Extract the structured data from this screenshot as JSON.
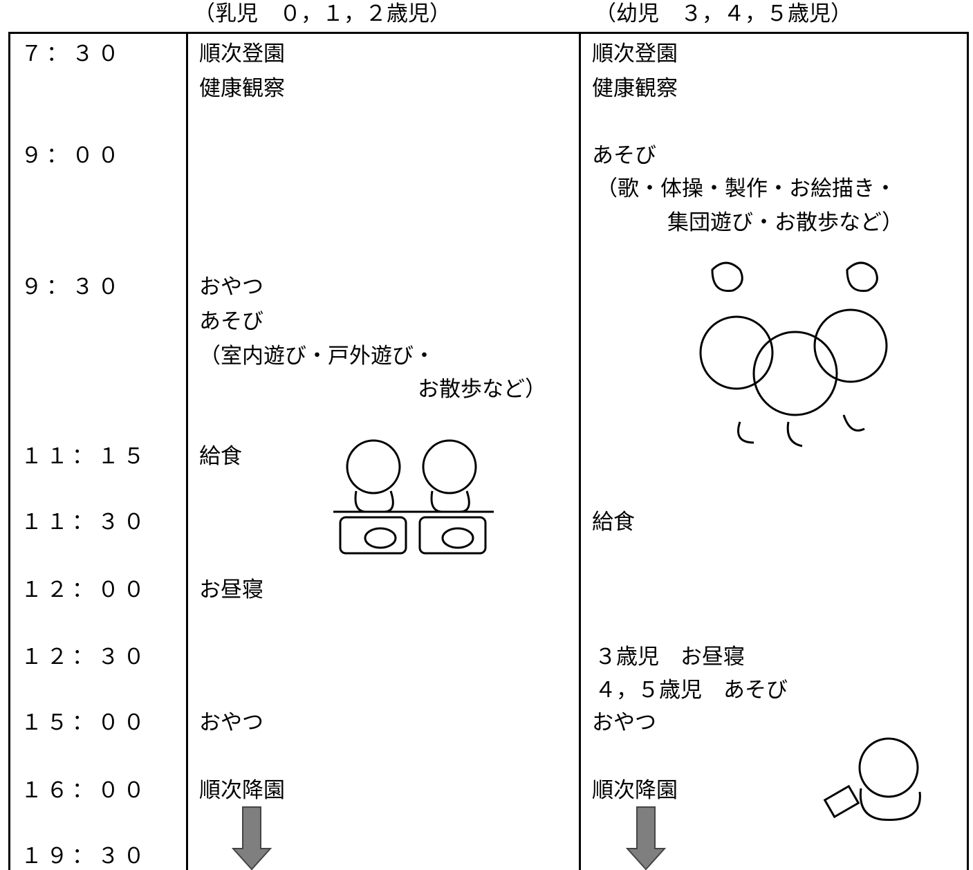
{
  "headers": [
    "（乳児　０，１，２歳児）",
    "（幼児　３，４，５歳児）"
  ],
  "times": [
    "７：３０",
    "９：００",
    "９：３０",
    "１１：１５",
    "１１：３０",
    "１２：００",
    "１２：３０",
    "１５：００",
    "１６：００",
    "１９：３０"
  ],
  "infant": [
    "順次登園",
    "健康観察",
    "おやつ",
    "あそび",
    "（室内遊び・戸外遊び・",
    "お散歩など）",
    "給食",
    "お昼寝",
    "おやつ",
    "順次降園"
  ],
  "toddler": [
    "順次登園",
    "健康観察",
    "あそび",
    "（歌・体操・製作・お絵描き・",
    "集団遊び・お散歩など）",
    "給食",
    "３歳児　お昼寝",
    "４，５歳児　あそび",
    "おやつ",
    "順次降園"
  ]
}
